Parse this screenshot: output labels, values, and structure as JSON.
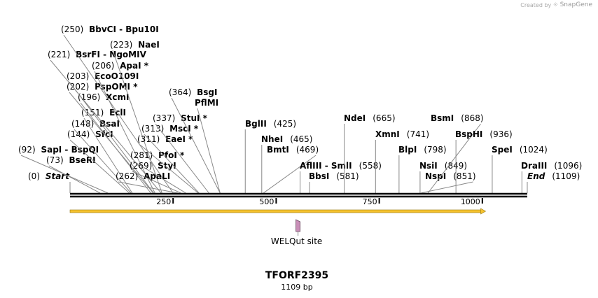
{
  "watermark": {
    "prefix": "Created by",
    "brand": "SnapGene"
  },
  "sequence": {
    "name": "TFORF2395",
    "length_label": "1109 bp",
    "length": 1109
  },
  "ruler": {
    "ticks": [
      {
        "pos": 250,
        "label": "250"
      },
      {
        "pos": 500,
        "label": "500"
      },
      {
        "pos": 750,
        "label": "750"
      },
      {
        "pos": 1000,
        "label": "1000"
      }
    ]
  },
  "sites": [
    {
      "id": "start",
      "pos": 0,
      "pos_text": "(0)",
      "name": "Start",
      "italic": true
    },
    {
      "id": "bseri",
      "pos": 73,
      "pos_text": "(73)",
      "name": "BseRI"
    },
    {
      "id": "sapi",
      "pos": 92,
      "pos_text": "(92)",
      "name": "SapI  - BspQI"
    },
    {
      "id": "sfci",
      "pos": 144,
      "pos_text": "(144)",
      "name": "SfcI"
    },
    {
      "id": "bsai",
      "pos": 148,
      "pos_text": "(148)",
      "name": "BsaI"
    },
    {
      "id": "ecli",
      "pos": 151,
      "pos_text": "(151)",
      "name": "EclI"
    },
    {
      "id": "xcmi",
      "pos": 196,
      "pos_text": "(196)",
      "name": "XcmI"
    },
    {
      "id": "pspomi",
      "pos": 202,
      "pos_text": "(202)",
      "name": "PspOMI *"
    },
    {
      "id": "ecoo109i",
      "pos": 203,
      "pos_text": "(203)",
      "name": "EcoO109I"
    },
    {
      "id": "apai",
      "pos": 206,
      "pos_text": "(206)",
      "name": "ApaI *"
    },
    {
      "id": "bsrfi",
      "pos": 221,
      "pos_text": "(221)",
      "name": "BsrFI  - NgoMIV"
    },
    {
      "id": "naei",
      "pos": 223,
      "pos_text": "(223)",
      "name": "NaeI"
    },
    {
      "id": "bbvci",
      "pos": 250,
      "pos_text": "(250)",
      "name": "BbvCI  - Bpu10I"
    },
    {
      "id": "apali",
      "pos": 262,
      "pos_text": "(262)",
      "name": "ApaLI"
    },
    {
      "id": "styi",
      "pos": 269,
      "pos_text": "(269)",
      "name": "StyI"
    },
    {
      "id": "pfoi",
      "pos": 281,
      "pos_text": "(281)",
      "name": "PfoI *"
    },
    {
      "id": "eaei",
      "pos": 311,
      "pos_text": "(311)",
      "name": "EaeI *"
    },
    {
      "id": "mscI",
      "pos": 313,
      "pos_text": "(313)",
      "name": "MscI *"
    },
    {
      "id": "stui",
      "pos": 337,
      "pos_text": "(337)",
      "name": "StuI *"
    },
    {
      "id": "bsgi",
      "pos": 364,
      "pos_text": "(364)",
      "name": "BsgI"
    },
    {
      "id": "pflmi",
      "pos": 364,
      "pos_text": "",
      "name": "PflMI"
    },
    {
      "id": "bglii",
      "pos": 425,
      "pos_text": "(425)",
      "name": "BglII"
    },
    {
      "id": "nhei",
      "pos": 465,
      "pos_text": "(465)",
      "name": "NheI"
    },
    {
      "id": "bmti",
      "pos": 469,
      "pos_text": "(469)",
      "name": "BmtI"
    },
    {
      "id": "afliii",
      "pos": 558,
      "pos_text": "(558)",
      "name": "AflIII  - SmlI"
    },
    {
      "id": "bbsi",
      "pos": 581,
      "pos_text": "(581)",
      "name": "BbsI"
    },
    {
      "id": "ndei",
      "pos": 665,
      "pos_text": "(665)",
      "name": "NdeI"
    },
    {
      "id": "xmni",
      "pos": 741,
      "pos_text": "(741)",
      "name": "XmnI"
    },
    {
      "id": "blpi",
      "pos": 798,
      "pos_text": "(798)",
      "name": "BlpI"
    },
    {
      "id": "nsii",
      "pos": 849,
      "pos_text": "(849)",
      "name": "NsiI"
    },
    {
      "id": "nspi",
      "pos": 851,
      "pos_text": "(851)",
      "name": "NspI"
    },
    {
      "id": "bsmi",
      "pos": 868,
      "pos_text": "(868)",
      "name": "BsmI"
    },
    {
      "id": "bsphi",
      "pos": 936,
      "pos_text": "(936)",
      "name": "BspHI"
    },
    {
      "id": "spei",
      "pos": 1024,
      "pos_text": "(1024)",
      "name": "SpeI"
    },
    {
      "id": "draiii",
      "pos": 1096,
      "pos_text": "(1096)",
      "name": "DraIII"
    },
    {
      "id": "end",
      "pos": 1109,
      "pos_text": "(1109)",
      "name": "End",
      "italic": true
    }
  ],
  "features": [
    {
      "id": "orf",
      "start": 0,
      "end": 1008,
      "direction": "forward",
      "color": "#f5c22e"
    },
    {
      "id": "welqut",
      "pos": 553,
      "label": "WELQut site",
      "color": "#c98fb8"
    }
  ]
}
